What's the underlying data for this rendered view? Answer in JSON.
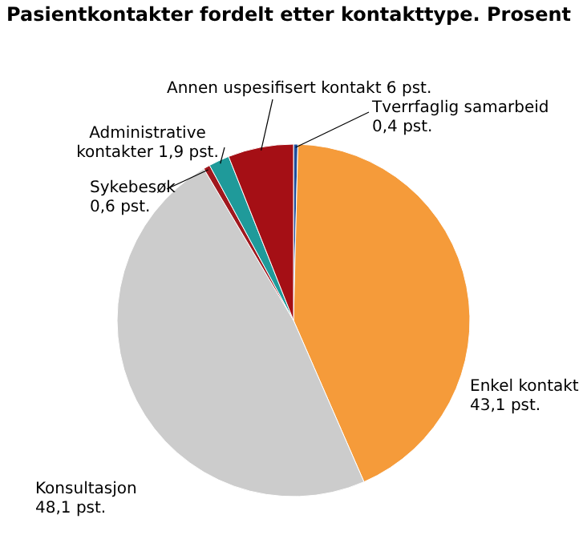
{
  "chart_data": {
    "type": "pie",
    "title": "Pasientkontakter fordelt etter kontakttype. Prosent",
    "categories": [
      "Tverrfaglig samarbeid",
      "Enkel kontakt",
      "Konsultasjon",
      "Sykebesøk",
      "Administrative kontakter",
      "Annen uspesifisert kontakt"
    ],
    "values": [
      0.4,
      43.1,
      48.1,
      0.6,
      1.9,
      6
    ],
    "colors": [
      "#1f4e9c",
      "#f59b3a",
      "#cccccc",
      "#a0181e",
      "#1f9a9a",
      "#a50f15"
    ],
    "value_labels": [
      "0,4 pst.",
      "43,1 pst.",
      "48,1 pst.",
      "0,6 pst.",
      "1,9 pst.",
      "6 pst."
    ],
    "legend": false
  }
}
